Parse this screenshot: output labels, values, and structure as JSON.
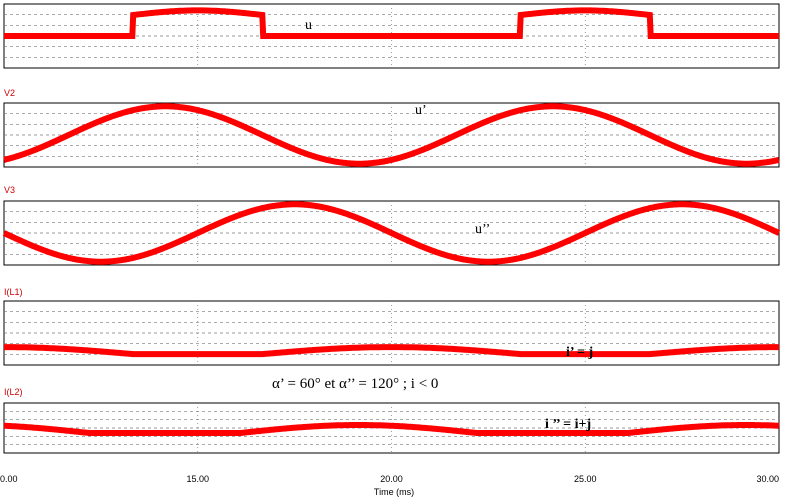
{
  "chart_data": {
    "type": "line",
    "xlabel": "Time (ms)",
    "xlim": [
      10,
      30
    ],
    "x_ticks": [
      "0.00",
      "15.00",
      "20.00",
      "25.00",
      "30.00"
    ],
    "caption": "α’ = 60° et α’’ = 120° ; i < 0",
    "colors": {
      "trace": "#ff0000",
      "frame": "#000000",
      "grid": "#777777",
      "panel_label": "#cc0000"
    },
    "panels": [
      {
        "name": "",
        "annotation": "u",
        "shape": "chopped",
        "a1": 13.333,
        "a2": 16.667,
        "plateau": 0.45,
        "amp": 0.8
      },
      {
        "name": "V2",
        "annotation": "u’",
        "shape": "step",
        "a": 13.333,
        "amp": 0.78
      },
      {
        "name": "V3",
        "annotation": "u’’",
        "shape": "step",
        "a": 16.667,
        "amp": 0.78
      },
      {
        "name": "I(L1)",
        "annotation": "i’ = j",
        "shape": "smooth",
        "t1": 13.333,
        "t2": 16.667,
        "floor": 0.17,
        "peak": 0.28
      },
      {
        "name": "I(L2)",
        "annotation": "i ’’ = i+j",
        "shape": "smooth",
        "t1": 12.2,
        "t2": 16.1,
        "floor": 0.4,
        "peak": 0.56
      }
    ]
  }
}
